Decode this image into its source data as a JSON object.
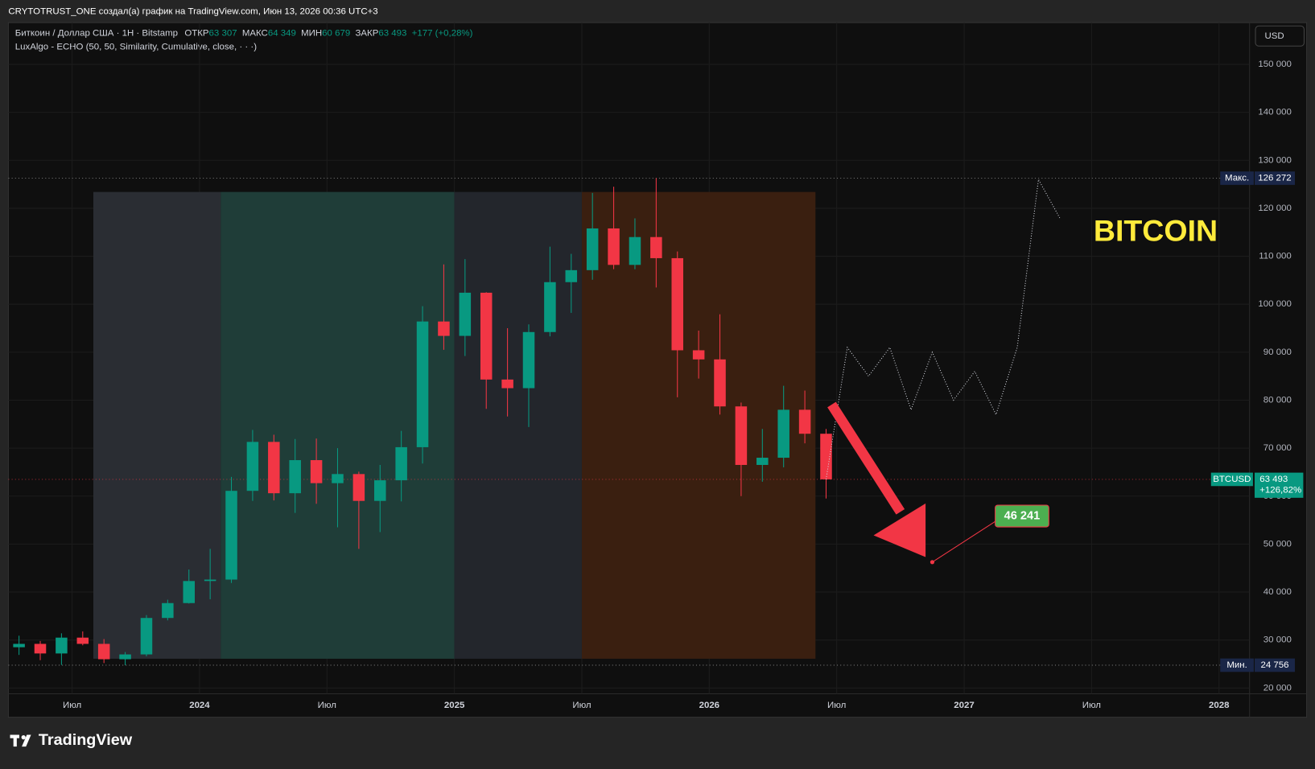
{
  "header": {
    "attribution": "CRYTOTRUST_ONE создал(а) график на TradingView.com, Июн 13, 2026 00:36 UTC+3",
    "usd_button": "USD",
    "brand": "TradingView"
  },
  "chart_data": {
    "type": "candlestick",
    "title": "Биткоин / Доллар США · 1Н · Bitstamp",
    "ohlc_legend": {
      "labels": [
        "ОТКР",
        "МАКС",
        "МИН",
        "ЗАКР"
      ],
      "values": [
        {
          "value": 63307,
          "label": "63 307"
        },
        {
          "value": 64349,
          "label": "64 349"
        },
        {
          "value": 60679,
          "label": "60 679"
        },
        {
          "value": 63493,
          "label": "63 493"
        }
      ],
      "change": "+177 (+0,28%)"
    },
    "annotation": "BITCOIN",
    "x": [
      "2023-04",
      "2023-05",
      "2023-06",
      "2023-07",
      "2023-08",
      "2023-09",
      "2023-10",
      "2023-11",
      "2023-12",
      "2024-01",
      "2024-02",
      "2024-03",
      "2024-04",
      "2024-05",
      "2024-06",
      "2024-07",
      "2024-08",
      "2024-09",
      "2024-10",
      "2024-11",
      "2024-12",
      "2025-01",
      "2025-02",
      "2025-03",
      "2025-04",
      "2025-05",
      "2025-06",
      "2025-07",
      "2025-08",
      "2025-09",
      "2025-10",
      "2025-11",
      "2025-12",
      "2026-01",
      "2026-02",
      "2026-03",
      "2026-04",
      "2026-05",
      "2026-06"
    ],
    "open": [
      28500,
      29200,
      27200,
      30500,
      29200,
      26000,
      27000,
      34600,
      37700,
      42300,
      42600,
      61100,
      71300,
      60600,
      67500,
      62700,
      64600,
      59000,
      63300,
      70200,
      96400,
      93400,
      102400,
      84300,
      82500,
      94200,
      104600,
      107100,
      115800,
      108200,
      114000,
      109600,
      90400,
      88500,
      78700,
      66500,
      68000,
      78000,
      73000
    ],
    "high": [
      30900,
      29800,
      31400,
      31800,
      30200,
      27500,
      35200,
      38400,
      44700,
      49000,
      64000,
      73800,
      72800,
      71900,
      72000,
      70000,
      65100,
      66500,
      73600,
      99600,
      108300,
      109400,
      102500,
      95000,
      95800,
      112000,
      110500,
      123200,
      124500,
      117900,
      126272,
      111000,
      94500,
      97900,
      79500,
      74000,
      83000,
      82000,
      74000
    ],
    "low": [
      26900,
      25800,
      24800,
      28900,
      25200,
      24756,
      26600,
      34100,
      37600,
      38500,
      41900,
      59000,
      59100,
      56500,
      58400,
      53500,
      49000,
      52500,
      58900,
      66800,
      90500,
      89200,
      78200,
      76600,
      74400,
      93300,
      98200,
      105100,
      107300,
      107300,
      103500,
      80600,
      84500,
      77000,
      60000,
      63000,
      66000,
      71000,
      59500
    ],
    "close": [
      29200,
      27200,
      30500,
      29200,
      26000,
      27000,
      34600,
      37700,
      42300,
      42600,
      61100,
      71300,
      60600,
      67500,
      62700,
      64600,
      59000,
      63300,
      70200,
      96400,
      93400,
      102400,
      84300,
      82500,
      94200,
      104600,
      107100,
      115800,
      108200,
      114000,
      109600,
      90400,
      88500,
      78700,
      66500,
      68000,
      78000,
      73000,
      63493
    ],
    "up_color": "#089981",
    "down_color": "#f23645",
    "projection": {
      "name": "LuxAlgo - ECHO (50, 50, Similarity, Cumulative, close, · · ·)",
      "color": "#d1d4dc",
      "x": [
        "2026-06",
        "2026-07",
        "2026-08",
        "2026-09",
        "2026-10",
        "2026-11",
        "2026-12",
        "2027-01",
        "2027-02",
        "2027-03",
        "2027-04",
        "2027-05"
      ],
      "values": [
        63493,
        91000,
        85000,
        91000,
        78000,
        90000,
        80000,
        86000,
        77000,
        91000,
        126000,
        118000
      ]
    },
    "zones": [
      {
        "start": "2023-08",
        "end": "2024-01",
        "top": 123400,
        "bottom": 26100,
        "color": "#2a2d33"
      },
      {
        "start": "2024-02",
        "end": "2024-12",
        "top": 123400,
        "bottom": 26100,
        "color": "#1f3d38"
      },
      {
        "start": "2025-01",
        "end": "2025-06",
        "top": 123400,
        "bottom": 26100,
        "color": "#23262c"
      },
      {
        "start": "2025-07",
        "end": "2026-05",
        "top": 123400,
        "bottom": 26100,
        "color": "#3a1f10"
      }
    ],
    "max": {
      "label": "Макс.",
      "value": 126272,
      "value_label": "126 272"
    },
    "min": {
      "label": "Мин.",
      "value": 24756,
      "value_label": "24 756"
    },
    "last": {
      "name": "BTCUSD",
      "value": 63493,
      "value_label": "63 493",
      "change": "+126,82%"
    },
    "target": {
      "x": "2026-11",
      "value": 46241,
      "value_label": "46 241"
    },
    "xlim": [
      2023.25,
      2028.12
    ],
    "xticks": [
      {
        "value": 2023.5,
        "label": "Июл"
      },
      2024,
      {
        "value": 2024.5,
        "label": "Июл"
      },
      2025,
      {
        "value": 2025.5,
        "label": "Июл"
      },
      2026,
      {
        "value": 2026.5,
        "label": "Июл"
      },
      2027,
      {
        "value": 2027.5,
        "label": "Июл"
      },
      2028
    ],
    "ylim": [
      18800,
      158700
    ],
    "yticks": [
      {
        "value": 20000,
        "label": "20 000"
      },
      {
        "value": 30000,
        "label": "30 000"
      },
      {
        "value": 40000,
        "label": "40 000"
      },
      {
        "value": 50000,
        "label": "50 000"
      },
      {
        "value": 60000,
        "label": "60 000"
      },
      {
        "value": 70000,
        "label": "70 000"
      },
      {
        "value": 80000,
        "label": "80 000"
      },
      {
        "value": 90000,
        "label": "90 000"
      },
      {
        "value": 100000,
        "label": "100 000"
      },
      {
        "value": 110000,
        "label": "110 000"
      },
      {
        "value": 120000,
        "label": "120 000"
      },
      {
        "value": 130000,
        "label": "130 000"
      },
      {
        "value": 140000,
        "label": "140 000"
      },
      {
        "value": 150000,
        "label": "150 000"
      }
    ],
    "grid": true
  }
}
